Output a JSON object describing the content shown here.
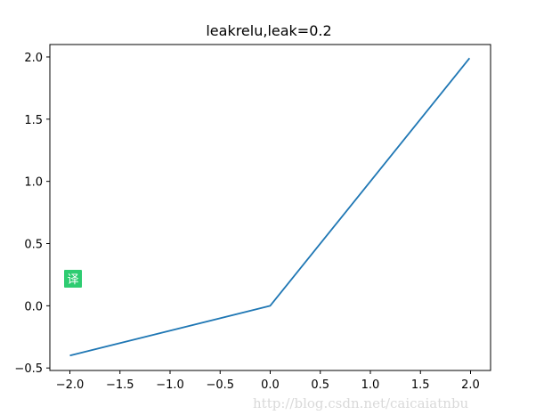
{
  "chart_data": {
    "type": "line",
    "title": "leakrelu,leak=0.2",
    "xlabel": "",
    "ylabel": "",
    "xlim": [
      -2.2,
      2.2
    ],
    "ylim": [
      -0.52,
      2.1
    ],
    "xticks": [
      -2.0,
      -1.5,
      -1.0,
      -0.5,
      0.0,
      0.5,
      1.0,
      1.5,
      2.0
    ],
    "xtick_labels": [
      "−2.0",
      "−1.5",
      "−1.0",
      "−0.5",
      "0.0",
      "0.5",
      "1.0",
      "1.5",
      "2.0"
    ],
    "yticks": [
      -0.5,
      0.0,
      0.5,
      1.0,
      1.5,
      2.0
    ],
    "ytick_labels": [
      "−0.5",
      "0.0",
      "0.5",
      "1.0",
      "1.5",
      "2.0"
    ],
    "grid": false,
    "series": [
      {
        "color": "#1f77b4",
        "x": [
          -2.0,
          0.0,
          1.99
        ],
        "y": [
          -0.4,
          0.0,
          1.99
        ]
      }
    ]
  },
  "overlay": {
    "badge_text": "译",
    "badge_color": "#2ecc71",
    "watermark": "http://blog.csdn.net/caicaiatnbu"
  }
}
